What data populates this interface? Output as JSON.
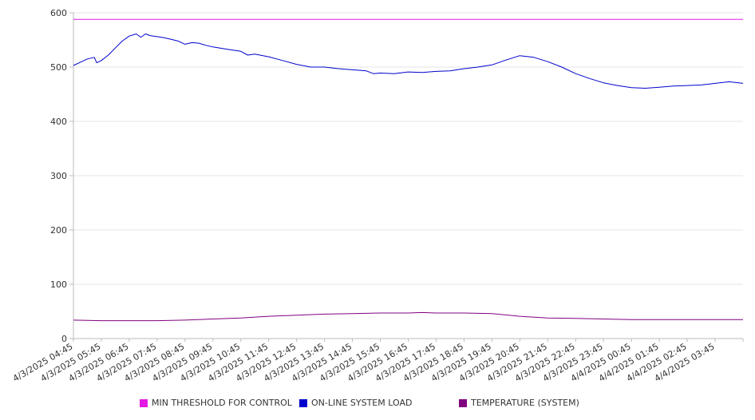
{
  "chart_data": {
    "type": "line",
    "title": "",
    "xlabel": "",
    "ylabel": "",
    "ylim": [
      0,
      600
    ],
    "yticks": [
      0,
      100,
      200,
      300,
      400,
      500,
      600
    ],
    "grid": true,
    "legend_position": "bottom",
    "x_tick_labels": [
      "4/3/2025 04:45",
      "4/3/2025 05:45",
      "4/3/2025 06:45",
      "4/3/2025 07:45",
      "4/3/2025 08:45",
      "4/3/2025 09:45",
      "4/3/2025 10:45",
      "4/3/2025 11:45",
      "4/3/2025 12:45",
      "4/3/2025 13:45",
      "4/3/2025 14:45",
      "4/3/2025 15:45",
      "4/3/2025 16:45",
      "4/3/2025 17:45",
      "4/3/2025 18:45",
      "4/3/2025 19:45",
      "4/3/2025 20:45",
      "4/3/2025 21:45",
      "4/3/2025 22:45",
      "4/3/2025 23:45",
      "4/4/2025 00:45",
      "4/4/2025 01:45",
      "4/4/2025 02:45",
      "4/4/2025 03:45"
    ],
    "x_end": "4/4/2025 04:45",
    "series": [
      {
        "name": "MIN THRESHOLD FOR CONTROL",
        "color": "#e31ae3",
        "points": [
          [
            "4/3/2025 04:45",
            588
          ],
          [
            "4/4/2025 04:45",
            588
          ]
        ]
      },
      {
        "name": "ON-LINE SYSTEM LOAD",
        "color": "#0000cc",
        "points": [
          [
            "4/3/2025 04:45",
            503
          ],
          [
            "4/3/2025 05:00",
            509
          ],
          [
            "4/3/2025 05:15",
            515
          ],
          [
            "4/3/2025 05:30",
            518
          ],
          [
            "4/3/2025 05:35",
            508
          ],
          [
            "4/3/2025 05:45",
            512
          ],
          [
            "4/3/2025 06:00",
            522
          ],
          [
            "4/3/2025 06:15",
            535
          ],
          [
            "4/3/2025 06:30",
            548
          ],
          [
            "4/3/2025 06:45",
            557
          ],
          [
            "4/3/2025 07:00",
            561
          ],
          [
            "4/3/2025 07:10",
            555
          ],
          [
            "4/3/2025 07:20",
            561
          ],
          [
            "4/3/2025 07:30",
            558
          ],
          [
            "4/3/2025 07:45",
            556
          ],
          [
            "4/3/2025 08:00",
            554
          ],
          [
            "4/3/2025 08:15",
            551
          ],
          [
            "4/3/2025 08:30",
            548
          ],
          [
            "4/3/2025 08:45",
            542
          ],
          [
            "4/3/2025 09:00",
            545
          ],
          [
            "4/3/2025 09:15",
            544
          ],
          [
            "4/3/2025 09:30",
            540
          ],
          [
            "4/3/2025 09:45",
            537
          ],
          [
            "4/3/2025 10:15",
            533
          ],
          [
            "4/3/2025 10:45",
            529
          ],
          [
            "4/3/2025 11:00",
            522
          ],
          [
            "4/3/2025 11:15",
            524
          ],
          [
            "4/3/2025 11:45",
            519
          ],
          [
            "4/3/2025 12:15",
            512
          ],
          [
            "4/3/2025 12:45",
            505
          ],
          [
            "4/3/2025 13:15",
            500
          ],
          [
            "4/3/2025 13:45",
            500
          ],
          [
            "4/3/2025 14:15",
            497
          ],
          [
            "4/3/2025 14:45",
            495
          ],
          [
            "4/3/2025 15:15",
            493
          ],
          [
            "4/3/2025 15:30",
            488
          ],
          [
            "4/3/2025 15:45",
            489
          ],
          [
            "4/3/2025 16:15",
            488
          ],
          [
            "4/3/2025 16:45",
            491
          ],
          [
            "4/3/2025 17:15",
            490
          ],
          [
            "4/3/2025 17:45",
            492
          ],
          [
            "4/3/2025 18:15",
            493
          ],
          [
            "4/3/2025 18:45",
            497
          ],
          [
            "4/3/2025 19:15",
            500
          ],
          [
            "4/3/2025 19:45",
            504
          ],
          [
            "4/3/2025 20:15",
            513
          ],
          [
            "4/3/2025 20:45",
            521
          ],
          [
            "4/3/2025 21:15",
            518
          ],
          [
            "4/3/2025 21:45",
            510
          ],
          [
            "4/3/2025 22:15",
            500
          ],
          [
            "4/3/2025 22:45",
            488
          ],
          [
            "4/3/2025 23:15",
            479
          ],
          [
            "4/3/2025 23:45",
            471
          ],
          [
            "4/4/2025 00:15",
            466
          ],
          [
            "4/4/2025 00:45",
            462
          ],
          [
            "4/4/2025 01:15",
            461
          ],
          [
            "4/4/2025 01:45",
            463
          ],
          [
            "4/4/2025 02:15",
            465
          ],
          [
            "4/4/2025 02:45",
            466
          ],
          [
            "4/4/2025 03:15",
            467
          ],
          [
            "4/4/2025 03:45",
            470
          ],
          [
            "4/4/2025 04:15",
            473
          ],
          [
            "4/4/2025 04:45",
            470
          ]
        ]
      },
      {
        "name": "TEMPERATURE (SYSTEM)",
        "color": "#800080",
        "points": [
          [
            "4/3/2025 04:45",
            34
          ],
          [
            "4/3/2025 05:45",
            33
          ],
          [
            "4/3/2025 06:45",
            33
          ],
          [
            "4/3/2025 07:45",
            33
          ],
          [
            "4/3/2025 08:45",
            34
          ],
          [
            "4/3/2025 09:45",
            36
          ],
          [
            "4/3/2025 10:45",
            38
          ],
          [
            "4/3/2025 11:45",
            41
          ],
          [
            "4/3/2025 12:45",
            43
          ],
          [
            "4/3/2025 13:45",
            45
          ],
          [
            "4/3/2025 14:45",
            46
          ],
          [
            "4/3/2025 15:45",
            47
          ],
          [
            "4/3/2025 16:45",
            47
          ],
          [
            "4/3/2025 17:15",
            48
          ],
          [
            "4/3/2025 17:45",
            47
          ],
          [
            "4/3/2025 18:45",
            47
          ],
          [
            "4/3/2025 19:45",
            46
          ],
          [
            "4/3/2025 20:45",
            41
          ],
          [
            "4/3/2025 21:45",
            38
          ],
          [
            "4/3/2025 22:45",
            37
          ],
          [
            "4/3/2025 23:45",
            36
          ],
          [
            "4/4/2025 00:45",
            35
          ],
          [
            "4/4/2025 01:45",
            35
          ],
          [
            "4/4/2025 02:45",
            35
          ],
          [
            "4/4/2025 03:45",
            35
          ],
          [
            "4/4/2025 04:45",
            35
          ]
        ]
      }
    ]
  }
}
